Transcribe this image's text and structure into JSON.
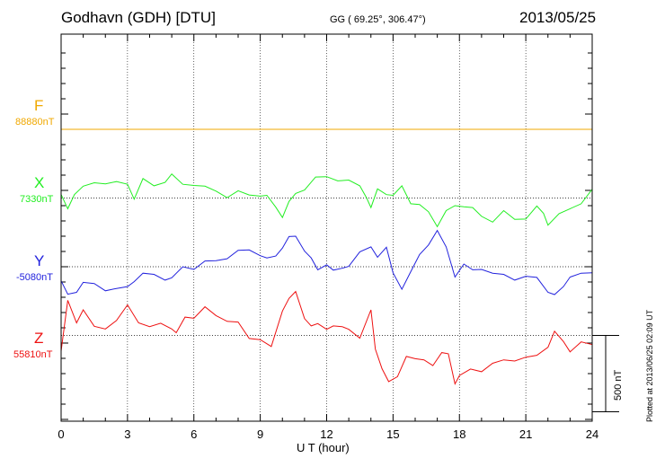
{
  "header": {
    "station": "Godhavn (GDH)  [DTU]",
    "coords": "GG ( 69.25°, 306.47°)",
    "date": "2013/05/25"
  },
  "footer": {
    "plotted": "Plotted at 2013/06/25 02:09 UT"
  },
  "chart_data": {
    "type": "line",
    "xlabel": "U T (hour)",
    "xlim": [
      0,
      24
    ],
    "xticks": [
      0,
      3,
      6,
      9,
      12,
      15,
      18,
      21,
      24
    ],
    "grid": true,
    "ylabel": "",
    "ylim_relative_nT": [
      -1320,
      1450
    ],
    "scale_bar": {
      "label": "500 nT",
      "value_nT": 500
    },
    "series": [
      {
        "name": "F",
        "baseline_label": "88880nT",
        "baseline_offset_nT": 900,
        "color": "#f0a800",
        "x": [
          0,
          24
        ],
        "values_nT": [
          0,
          0
        ]
      },
      {
        "name": "X",
        "baseline_label": "7330nT",
        "baseline_offset_nT": 450,
        "color": "#22ee22",
        "x": [
          0,
          0.3,
          0.6,
          1,
          1.5,
          2,
          2.5,
          3,
          3.3,
          3.7,
          4.2,
          4.7,
          5,
          5.5,
          6,
          6.5,
          7,
          7.5,
          8,
          8.5,
          9,
          9.3,
          9.7,
          10,
          10.3,
          10.6,
          11,
          11.5,
          12,
          12.5,
          13,
          13.5,
          13.8,
          14,
          14.3,
          14.7,
          15,
          15.4,
          15.8,
          16.2,
          16.6,
          17,
          17.4,
          17.8,
          18.2,
          18.6,
          19,
          19.5,
          20,
          20.5,
          21,
          21.5,
          21.8,
          22,
          22.5,
          23,
          23.5,
          24
        ],
        "values_nT": [
          5,
          -70,
          40,
          60,
          100,
          110,
          90,
          90,
          10,
          110,
          80,
          120,
          140,
          90,
          100,
          60,
          45,
          20,
          30,
          20,
          30,
          0,
          -60,
          -110,
          -40,
          30,
          70,
          120,
          140,
          130,
          100,
          80,
          20,
          -80,
          60,
          40,
          0,
          80,
          -20,
          -60,
          -90,
          -170,
          -100,
          -50,
          -40,
          -80,
          -120,
          -140,
          -100,
          -140,
          -120,
          -70,
          -100,
          -160,
          -120,
          -70,
          -20,
          40
        ]
      },
      {
        "name": "Y",
        "baseline_label": "-5080nT",
        "baseline_offset_nT": 0,
        "color": "#2222dd",
        "x": [
          0,
          0.3,
          0.7,
          1,
          1.5,
          2,
          2.5,
          3,
          3.3,
          3.7,
          4.2,
          4.7,
          5,
          5.5,
          6,
          6.5,
          7,
          7.5,
          8,
          8.5,
          9,
          9.3,
          9.7,
          10,
          10.3,
          10.6,
          11,
          11.3,
          11.6,
          12,
          12.3,
          12.7,
          13,
          13.5,
          14,
          14.3,
          14.7,
          15,
          15.4,
          15.8,
          16.2,
          16.6,
          17,
          17.4,
          17.8,
          18.2,
          18.6,
          19,
          19.5,
          20,
          20.5,
          21,
          21.5,
          22,
          22.3,
          22.7,
          23,
          23.5,
          24
        ],
        "values_nT": [
          -110,
          -180,
          -150,
          -120,
          -110,
          -140,
          -160,
          -130,
          -80,
          -60,
          -50,
          -70,
          -90,
          0,
          0,
          20,
          40,
          70,
          90,
          110,
          90,
          40,
          70,
          140,
          180,
          200,
          120,
          40,
          -20,
          30,
          -40,
          -10,
          20,
          80,
          130,
          80,
          110,
          -40,
          -130,
          -50,
          80,
          160,
          220,
          130,
          -50,
          0,
          -20,
          0,
          -60,
          -50,
          -70,
          -80,
          -70,
          -150,
          -200,
          -130,
          -50,
          -60,
          -40
        ]
      },
      {
        "name": "Z",
        "baseline_label": "55810nT",
        "baseline_offset_nT": -450,
        "color": "#ee1111",
        "x": [
          0,
          0.3,
          0.7,
          1,
          1.5,
          2,
          2.5,
          3,
          3.5,
          4,
          4.5,
          5,
          5.2,
          5.6,
          6,
          6.5,
          7,
          7.5,
          8,
          8.5,
          9,
          9.5,
          10,
          10.3,
          10.6,
          11,
          11.3,
          11.6,
          12,
          12.3,
          12.7,
          13,
          13.5,
          14,
          14.2,
          14.5,
          14.8,
          15.2,
          15.6,
          16,
          16.4,
          16.8,
          17.2,
          17.5,
          17.8,
          18,
          18.5,
          19,
          19.5,
          20,
          20.5,
          21,
          21.5,
          22,
          22.3,
          22.7,
          23,
          23.5,
          24
        ],
        "values_nT": [
          -120,
          230,
          100,
          150,
          60,
          60,
          80,
          200,
          100,
          40,
          80,
          60,
          0,
          120,
          130,
          170,
          130,
          110,
          70,
          -20,
          -10,
          -90,
          160,
          260,
          270,
          110,
          80,
          60,
          40,
          80,
          40,
          40,
          0,
          150,
          -90,
          -200,
          -320,
          -270,
          -120,
          -170,
          -160,
          -180,
          -130,
          -120,
          -300,
          -280,
          -220,
          -220,
          -200,
          -160,
          -150,
          -160,
          -130,
          -60,
          10,
          -40,
          -90,
          -60,
          -60
        ]
      }
    ]
  }
}
